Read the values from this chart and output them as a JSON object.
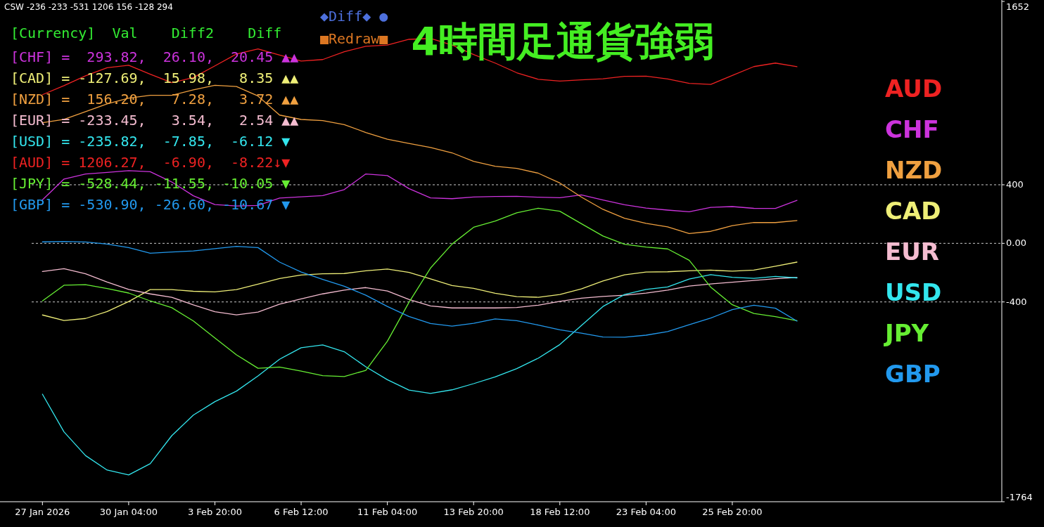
{
  "chart_data": {
    "type": "line",
    "title": "4時間足通貨強弱",
    "annotations": [
      "CSW -236 -233 -531 1206 156 -128 294",
      "[Currency]  Val    Diff2    Diff",
      "[CHF] =  293.82,  26.10,  20.45 ▲▲",
      "[CAD] = -127.69,  15.98,   8.35 ▲▲",
      "[NZD] =  156.20,   7.28,   3.72 ▲▲",
      "[EUR] = -233.45,   3.54,   2.54 ▲▲",
      "[USD] = -235.82,  -7.85,  -6.12 ▼",
      "[AUD] = 1206.27,  -6.90,  -8.22↓▼",
      "[JPY] = -528.44, -11.55, -10.05 ▼",
      "[GBP] = -530.90, -26.60, -10.67 ▼",
      "◆Diff◆ ●",
      "■Redraw■"
    ],
    "categories": [
      "27 Jan 2026",
      null,
      null,
      null,
      "30 Jan 04:00",
      null,
      null,
      null,
      "3 Feb 20:00",
      null,
      null,
      null,
      "6 Feb 12:00",
      null,
      null,
      null,
      "11 Feb 04:00",
      null,
      null,
      null,
      "13 Feb 20:00",
      null,
      null,
      null,
      "18 Feb 12:00",
      null,
      null,
      null,
      "23 Feb 04:00",
      null,
      null,
      null,
      "25 Feb 20:00",
      null,
      null,
      null,
      null,
      null,
      null,
      null,
      null,
      null,
      null,
      null,
      null
    ],
    "ylim": [
      -1764,
      1652
    ],
    "yticks": [
      1652,
      400,
      {
        "value": 0,
        "label": "0.00"
      },
      -400,
      -1764
    ],
    "grid": "y",
    "legend": "right",
    "line_style": "solid",
    "marker": "none",
    "series": [
      {
        "name": "CHF",
        "color": "#cc33dd",
        "values": [
          297,
          439,
          474,
          484,
          496,
          489,
          419,
          325,
          265,
          255,
          259,
          309,
          318,
          326,
          367,
          474,
          463,
          374,
          310,
          305,
          316,
          320,
          321,
          315,
          312,
          331,
          296,
          264,
          241,
          227,
          216,
          246,
          251,
          239,
          238,
          294,
          null,
          null,
          null,
          null,
          null,
          null,
          null,
          null,
          null
        ]
      },
      {
        "name": "CAD",
        "color": "#eeee77",
        "values": [
          -489,
          -527,
          -513,
          -466,
          -397,
          -316,
          -316,
          -327,
          -331,
          -316,
          -278,
          -240,
          -216,
          -208,
          -206,
          -187,
          -175,
          -198,
          -243,
          -288,
          -307,
          -341,
          -364,
          -368,
          -349,
          -311,
          -257,
          -215,
          -196,
          -194,
          -187,
          -183,
          -190,
          -183,
          -156,
          -128,
          null,
          null,
          null,
          null,
          null,
          null,
          null,
          null,
          null
        ]
      },
      {
        "name": "NZD",
        "color": "#f0a040",
        "values": [
          824,
          847,
          899,
          952,
          992,
          1011,
          1011,
          1048,
          1079,
          1071,
          1006,
          876,
          846,
          838,
          811,
          757,
          711,
          682,
          655,
          618,
          560,
          526,
          512,
          479,
          412,
          316,
          232,
          171,
          136,
          113,
          67,
          82,
          121,
          142,
          142,
          156,
          null,
          null,
          null,
          null,
          null,
          null,
          null,
          null,
          null
        ]
      },
      {
        "name": "EUR",
        "color": "#f4bcd0",
        "values": [
          -192,
          -173,
          -208,
          -264,
          -315,
          -345,
          -368,
          -420,
          -467,
          -488,
          -469,
          -415,
          -379,
          -345,
          -319,
          -302,
          -325,
          -383,
          -427,
          -441,
          -441,
          -441,
          -438,
          -422,
          -396,
          -374,
          -362,
          -354,
          -340,
          -319,
          -292,
          -277,
          -265,
          -253,
          -241,
          -233,
          null,
          null,
          null,
          null,
          null,
          null,
          null,
          null,
          null
        ]
      },
      {
        "name": "USD",
        "color": "#33e6ee",
        "values": [
          -1030,
          -1287,
          -1449,
          -1548,
          -1581,
          -1504,
          -1313,
          -1173,
          -1081,
          -1009,
          -905,
          -791,
          -713,
          -694,
          -740,
          -843,
          -931,
          -1002,
          -1025,
          -1000,
          -958,
          -912,
          -855,
          -784,
          -691,
          -561,
          -431,
          -349,
          -314,
          -298,
          -244,
          -214,
          -232,
          -239,
          -226,
          -236,
          null,
          null,
          null,
          null,
          null,
          null,
          null,
          null,
          null
        ]
      },
      {
        "name": "AUD",
        "color": "#ee2222",
        "values": [
          1015,
          1077,
          1144,
          1199,
          1216,
          1155,
          1097,
          1132,
          1212,
          1293,
          1327,
          1285,
          1245,
          1255,
          1308,
          1346,
          1354,
          1393,
          1399,
          1354,
          1289,
          1231,
          1165,
          1120,
          1108,
          1116,
          1124,
          1140,
          1142,
          1122,
          1092,
          1085,
          1146,
          1207,
          1231,
          1206,
          null,
          null,
          null,
          null,
          null,
          null,
          null,
          null,
          null
        ]
      },
      {
        "name": "JPY",
        "color": "#66ee33",
        "values": [
          -393,
          -286,
          -282,
          -309,
          -339,
          -393,
          -439,
          -530,
          -646,
          -761,
          -853,
          -845,
          -872,
          -903,
          -909,
          -867,
          -668,
          -403,
          -169,
          -5,
          110,
          152,
          209,
          240,
          219,
          134,
          50,
          -6,
          -25,
          -38,
          -115,
          -299,
          -419,
          -479,
          -500,
          -528,
          null,
          null,
          null,
          null,
          null,
          null,
          null,
          null,
          null
        ]
      },
      {
        "name": "GBP",
        "color": "#2299ee",
        "values": [
          10,
          13,
          9,
          -5,
          -29,
          -67,
          -59,
          -52,
          -36,
          -21,
          -29,
          -128,
          -196,
          -246,
          -293,
          -354,
          -431,
          -499,
          -547,
          -565,
          -546,
          -516,
          -528,
          -558,
          -590,
          -613,
          -640,
          -641,
          -627,
          -602,
          -556,
          -510,
          -452,
          -422,
          -443,
          -531,
          null,
          null,
          null,
          null,
          null,
          null,
          null,
          null,
          null
        ]
      }
    ]
  }
}
